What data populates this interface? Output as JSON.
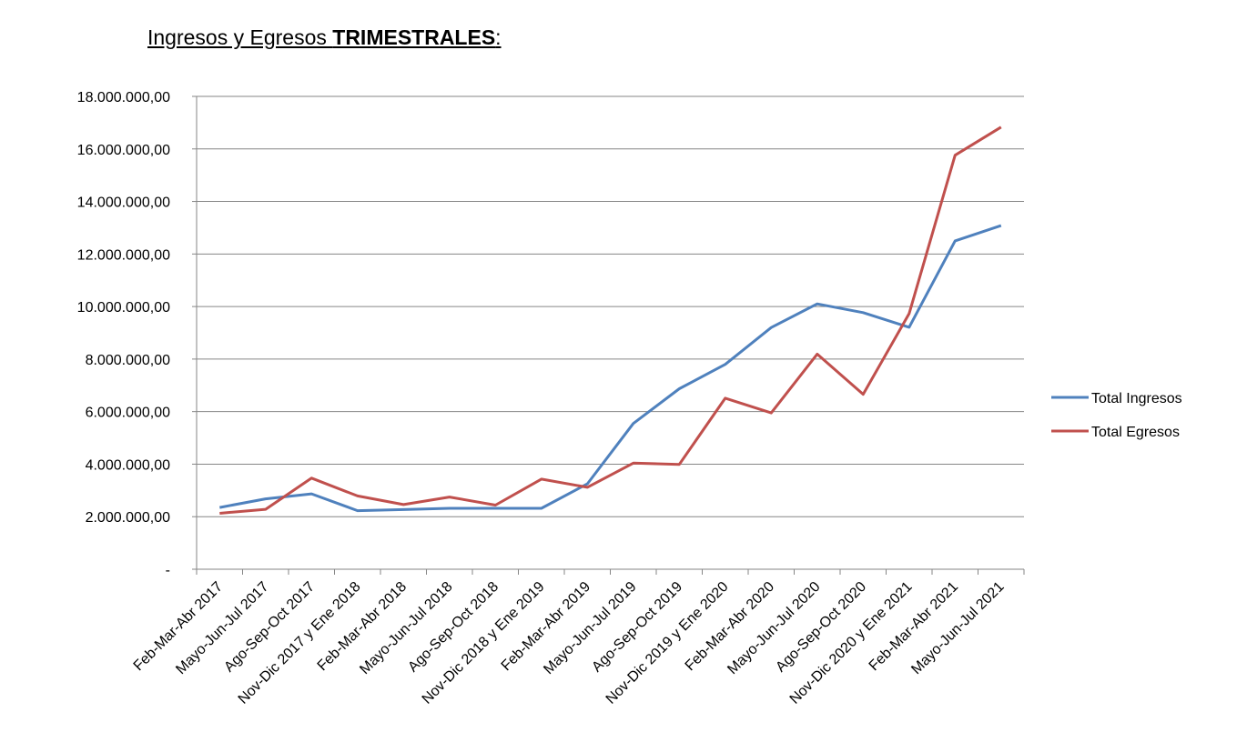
{
  "title": {
    "prefix": "Ingresos y Egresos ",
    "bold": "TRIMESTRALES",
    "suffix": ":"
  },
  "chart_data": {
    "type": "line",
    "title": "Ingresos y Egresos TRIMESTRALES:",
    "categories": [
      "Feb-Mar-Abr 2017",
      "Mayo-Jun-Jul 2017",
      "Ago-Sep-Oct 2017",
      "Nov-Dic 2017 y Ene 2018",
      "Feb-Mar-Abr 2018",
      "Mayo-Jun-Jul 2018",
      "Ago-Sep-Oct 2018",
      "Nov-Dic 2018 y Ene 2019",
      "Feb-Mar-Abr 2019",
      "Mayo-Jun-Jul 2019",
      "Ago-Sep-Oct 2019",
      "Nov-Dic 2019 y Ene 2020",
      "Feb-Mar-Abr 2020",
      "Mayo-Jun-Jul 2020",
      "Ago-Sep-Oct 2020",
      "Nov-Dic 2020 y Ene 2021",
      "Feb-Mar-Abr 2021",
      "Mayo-Jun-Jul 2021"
    ],
    "series": [
      {
        "name": "Total Ingresos",
        "color": "#4F81BD",
        "values": [
          2350000,
          2680000,
          2870000,
          2230000,
          2270000,
          2320000,
          2320000,
          2320000,
          3250000,
          5550000,
          6870000,
          7800000,
          9200000,
          10100000,
          9770000,
          9210000,
          12500000,
          13080000
        ]
      },
      {
        "name": "Total Egresos",
        "color": "#C0504D",
        "values": [
          2130000,
          2280000,
          3470000,
          2790000,
          2460000,
          2750000,
          2440000,
          3430000,
          3120000,
          4040000,
          3990000,
          6510000,
          5950000,
          8190000,
          6660000,
          9730000,
          15760000,
          16830000
        ]
      }
    ],
    "ylim": [
      0,
      18000000
    ],
    "yticks": [
      "-",
      "2.000.000,00",
      "4.000.000,00",
      "6.000.000,00",
      "8.000.000,00",
      "10.000.000,00",
      "12.000.000,00",
      "14.000.000,00",
      "16.000.000,00",
      "18.000.000,00"
    ],
    "grid": true,
    "legend_position": "right"
  }
}
